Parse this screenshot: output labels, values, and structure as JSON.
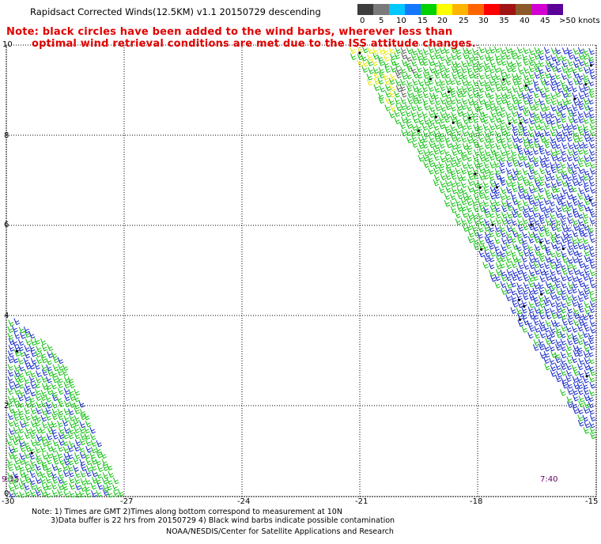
{
  "title": "Rapidsact Corrected Winds(12.5KM) v1.1 20150729 descending",
  "note_line1": "Note: black circles have been added to the wind barbs, wherever less than",
  "note_line2": "optimal wind retrieval conditions are met due to the ISS attitude changes.",
  "color_scale": {
    "labels": [
      "0",
      "5",
      "10",
      "15",
      "20",
      "25",
      "30",
      "35",
      "40",
      "45",
      ">50 knots"
    ],
    "colors": [
      "#3c3c3c",
      "#6e6e6e",
      "#00a8f0",
      "#0064ff",
      "#00c800",
      "#ffff00",
      "#ffb400",
      "#ff6400",
      "#ff0000",
      "#8c0000",
      "#9a5a2a",
      "#c800c8",
      "#6400a0"
    ]
  },
  "y_ticks": [
    "10",
    "8",
    "6",
    "4",
    "2",
    "0"
  ],
  "x_ticks": [
    "-30",
    "-27",
    "-24",
    "-21",
    "-18",
    "-15"
  ],
  "time_left": "9:15",
  "time_right": "7:40",
  "footer": {
    "line1": "Note: 1) Times are GMT 2)Times along bottom correspond to measurement at 10N",
    "line2": "3)Data buffer is 22 hrs from 20150729 4) Black wind barbs indicate possible contamination",
    "line3": "NOAA/NESDIS/Center for Satellite Applications and Research"
  }
}
